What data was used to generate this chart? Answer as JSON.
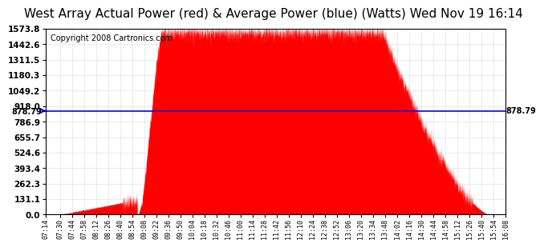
{
  "title": "West Array Actual Power (red) & Average Power (blue) (Watts) Wed Nov 19 16:14",
  "copyright": "Copyright 2008 Cartronics.com",
  "avg_power": 878.79,
  "y_max": 1573.8,
  "y_min": 0.0,
  "y_ticks": [
    0.0,
    131.1,
    262.3,
    393.4,
    524.6,
    655.7,
    786.9,
    918.0,
    1049.2,
    1180.3,
    1311.5,
    1442.6,
    1573.8
  ],
  "background_color": "#ffffff",
  "red_color": "#ff0000",
  "blue_color": "#0000ff",
  "grid_color": "#cccccc",
  "title_fontsize": 11,
  "copyright_fontsize": 7,
  "x_times": [
    "07:14",
    "07:30",
    "07:44",
    "07:58",
    "08:12",
    "08:26",
    "08:40",
    "08:54",
    "09:08",
    "09:22",
    "09:36",
    "09:50",
    "10:04",
    "10:18",
    "10:32",
    "10:46",
    "11:00",
    "11:14",
    "11:28",
    "11:42",
    "11:56",
    "12:10",
    "12:24",
    "12:38",
    "12:52",
    "13:06",
    "13:20",
    "13:34",
    "13:48",
    "14:02",
    "14:16",
    "14:30",
    "14:44",
    "14:58",
    "15:12",
    "15:26",
    "15:40",
    "15:54",
    "16:08"
  ]
}
